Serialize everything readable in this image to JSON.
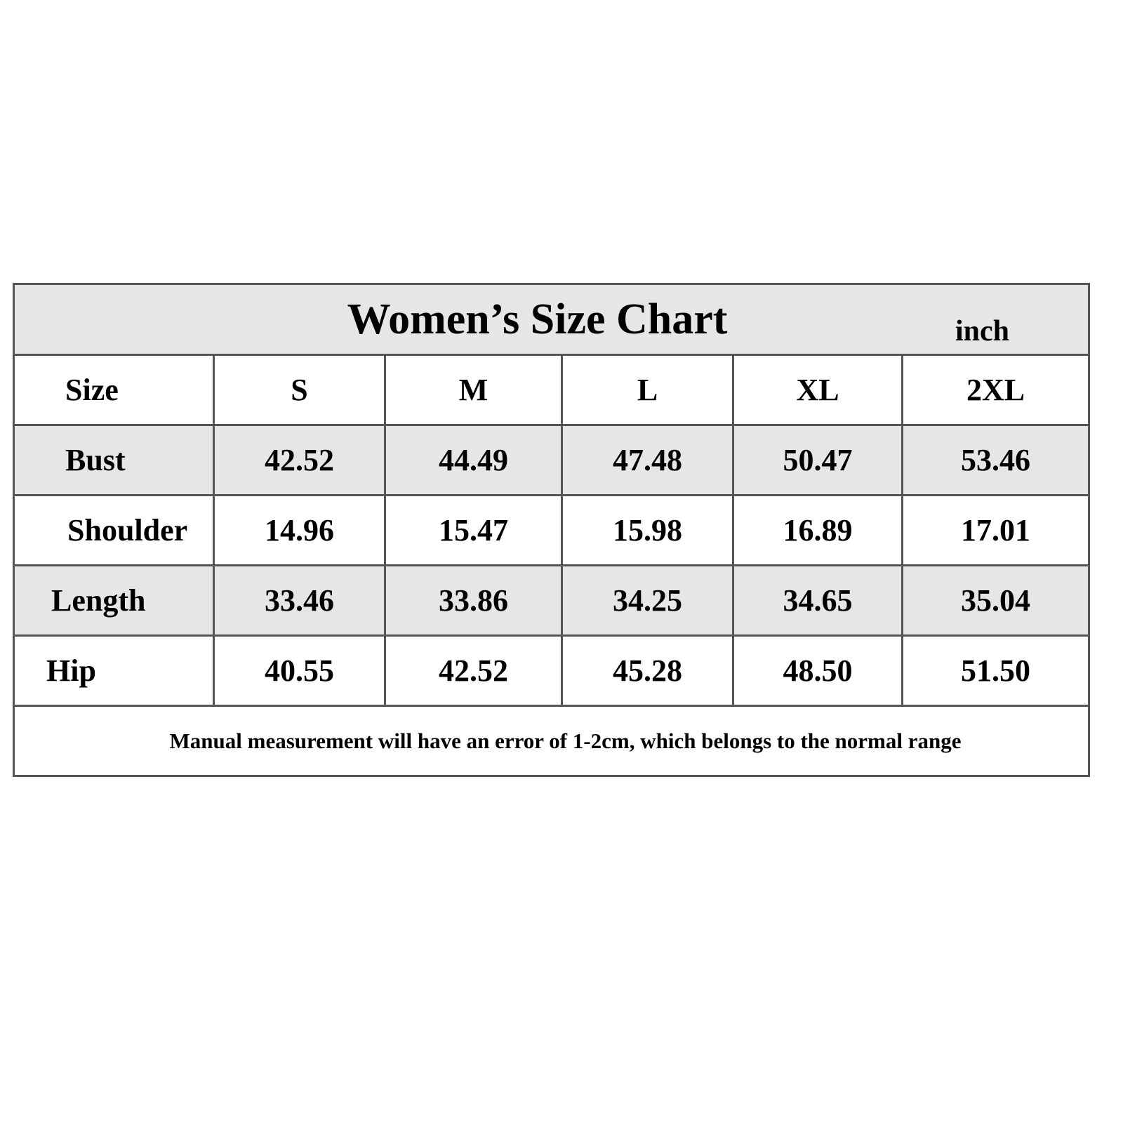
{
  "chart_data": {
    "type": "table",
    "title": "Women’s Size Chart",
    "unit": "inch",
    "header_label": "Size",
    "columns": [
      "S",
      "M",
      "L",
      "XL",
      "2XL"
    ],
    "rows": [
      {
        "label": "Bust",
        "values": [
          "42.52",
          "44.49",
          "47.48",
          "50.47",
          "53.46"
        ]
      },
      {
        "label": "Shoulder",
        "values": [
          "14.96",
          "15.47",
          "15.98",
          "16.89",
          "17.01"
        ]
      },
      {
        "label": "Length",
        "values": [
          "33.46",
          "33.86",
          "34.25",
          "34.65",
          "35.04"
        ]
      },
      {
        "label": "Hip",
        "values": [
          "40.55",
          "42.52",
          "45.28",
          "48.50",
          "51.50"
        ]
      }
    ],
    "note": "Manual measurement will have an error of 1-2cm, which belongs to the normal range"
  },
  "colors": {
    "shaded_row": "#e6e6e6",
    "border": "#555555",
    "text": "#000000"
  }
}
